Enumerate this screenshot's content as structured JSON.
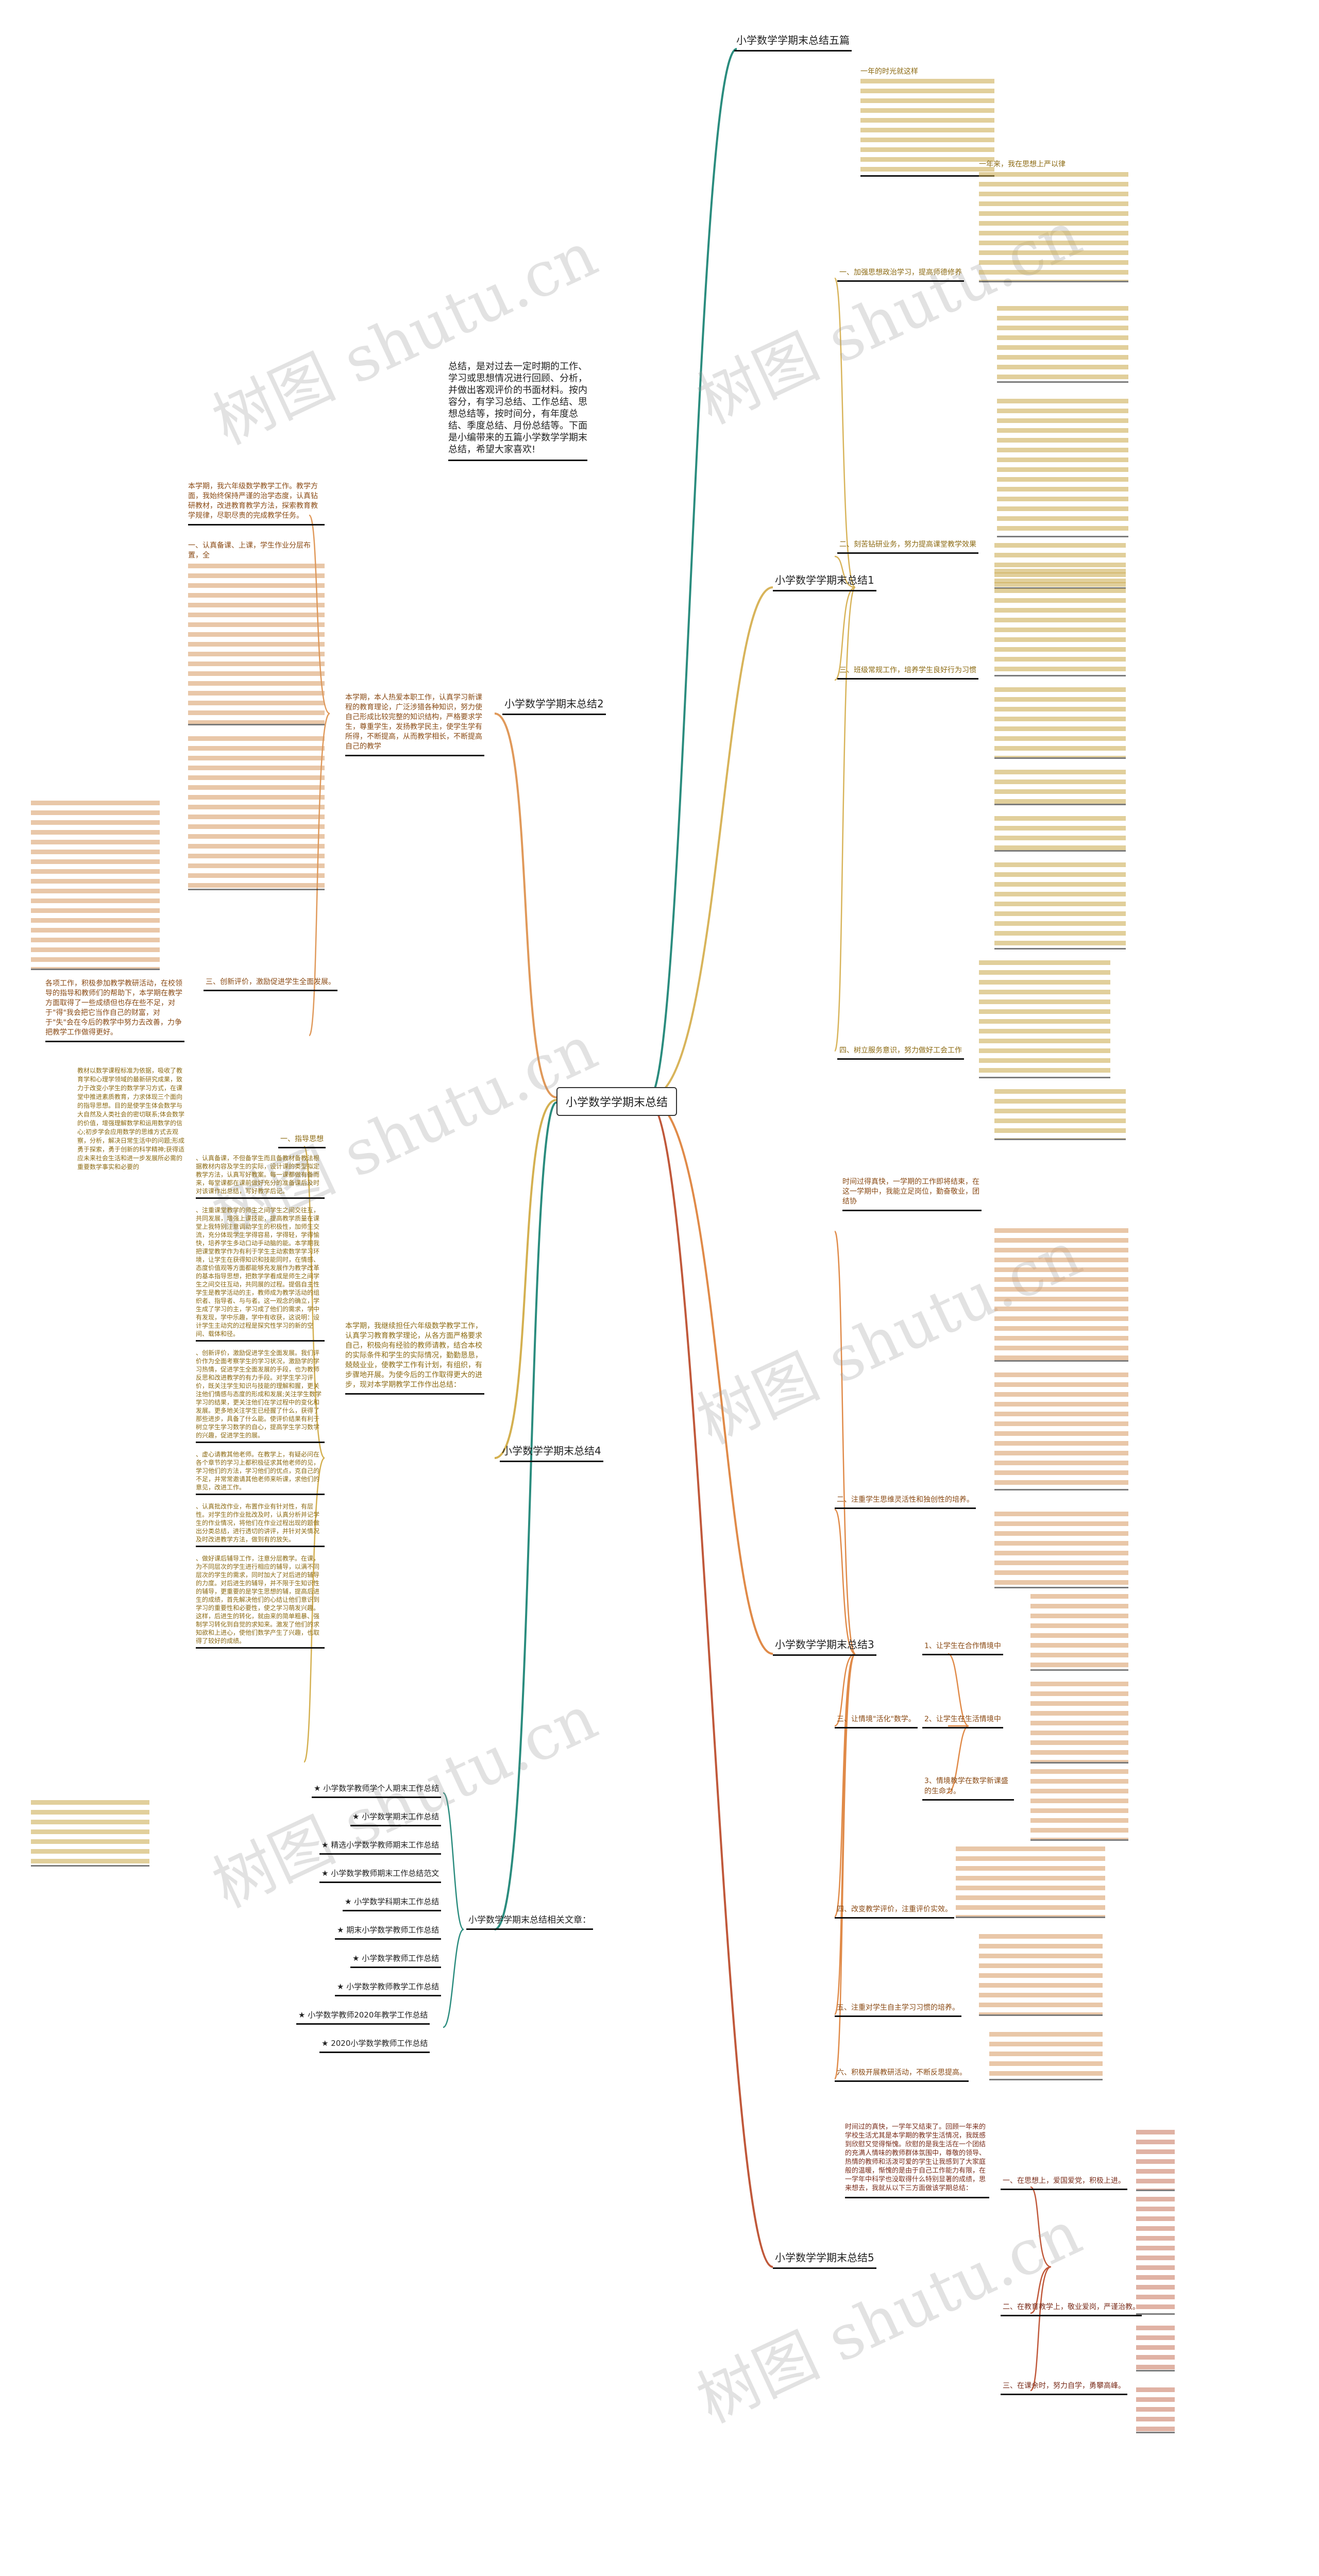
{
  "center": "小学数学学期末总结",
  "intro": "总结，是对过去一定时期的工作、学习或思想情况进行回顾、分析，并做出客观评价的书面材料。按内容分，有学习总结、工作总结、思想总结等，按时间分，有年度总结、季度总结、月份总结等。下面是小编带来的五篇小学数学学期末总结，希望大家喜欢!",
  "branches": {
    "five": {
      "label": "小学数学学期末总结五篇",
      "color": "#2a8c7e"
    },
    "b1": {
      "label": "小学数学学期末总结1",
      "color": "#d8b45a",
      "subs": [
        "一、加强思想政治学习，提高师德修养",
        "二、刻苦钻研业务，努力提高课堂教学效果",
        "三、班级常规工作，培养学生良好行为习惯",
        "四、树立服务意识，努力做好工会工作"
      ]
    },
    "b2": {
      "label": "小学数学学期末总结2",
      "color": "#e0995a",
      "intro": "本学期，本人热爱本职工作，认真学习新课程的教育理论，广泛涉猎各种知识，努力使自己形成比较完整的知识结构，严格要求学生，尊重学生，发扬教学民主，使学生学有所得，不断提高，从而教学相长，不断提高自己的教学",
      "p1": "本学期，我六年级数学教学工作。教学方面，我始终保持严谨的治学态度，认真钻研教材，改进教育教学方法，探索教育教学规律，尽职尽责的完成教学任务。",
      "s1": "一、认真备课、上课，学生作业分层布置，全",
      "s3": "三、创新评价，激励促进学生全面发展。",
      "p_end": "各项工作，积极参加教学教研活动，在校领导的指导和教师们的帮助下，本学期在教学方面取得了一些成绩但也存在些不足，对于\"得\"我会把它当作自己的财富，对于\"失\"会在今后的教学中努力去改善，力争把教学工作做得更好。"
    },
    "b3": {
      "label": "小学数学学期末总结3",
      "color": "#e08a48",
      "intro": "时间过得真快，一学期的工作即将结束，在这一学期中，我能立足岗位，勤奋敬业，团结协",
      "subs": [
        "二、注重学生思维灵活性和独创性的培养。",
        "三、让情境\"活化\"数学。",
        "四、改变教学评价，注重评价实效。",
        "五、注重对学生自主学习习惯的培养。",
        "六、积极开展教研活动，不断反思提高。"
      ],
      "sub3_items": [
        "1、让学生在合作情境中",
        "2、让学生在生活情境中",
        "3、情境教学在数学新课盛的生命力。"
      ]
    },
    "b4": {
      "label": "小学数学学期末总结4",
      "color": "#d4b050",
      "intro": "本学期，我继续担任六年级数学教学工作，认真学习教育教学理论，从各方面严格要求自己，积极向有经验的教师请教，结合本校的实际条件和学生的实际情况，勤勤恳恳，兢兢业业，使教学工作有计划，有组织，有步骤地开展。为使今后的工作取得更大的进步，现对本学期教学工作作出总结：",
      "guide_text": "教材以数学课程标准为依据，吸收了教育学和心理学领域的最新研究成果，致力于改变小学生的数学学习方式，在课堂中推进素质教育，力求体现三个面向的指导思想。目的是使学生体会数学与大自然及人类社会的密切联系;体会数学的价值，增强理解数学和运用数学的信心;初步学会应用数学的思维方式去观察，分析，解决日常生活中的问题;形成勇于探索，勇于创新的科学精神;获得适应未来社会生活和进一步发展所必需的重要数学事实和必要的",
      "guide": "一、指导思想",
      "items": [
        "、认真备课，不但备学生而且备教材备教法根据教材内容及学生的实际，设计课的类型拟定教学方法，认真写好教案。每一课都做有备而来，每堂课都在课前做好充分的准备课后及时对该课作出总结，写好教学后记。",
        "、注重课堂教学的师生之间学生之间交往互，共同发展，增强上课技能，提高教学质量在课堂上我特别注意调动学生的积极性，加师生交流，充分体现学生学得容易，学得轻，学得愉快，培养学生多动口动手动脑的能。本学期我把课堂教学作为有利于学生主动索数学学习环境，让学生在获得知识和技能同时，在情感、态度价值观等方面都能够充发展作为教学改革的基本指导思想，把数学学看成是师生之间学生之间交往互动，共同展的过程。提倡自主性学生是教学活动的主，教师成为教学活动的组织者、指导者、与与者。这一观念的确立，学生成了学习的主，学习成了他们的需求，学中有发现，学中乐趣，学中有收获，这说明：设计学生主动究的过程是探究性学习的新的空间、载体和径。",
        "、创新评价，激励促进学生全面发展。我们评价作为全面考察学生的学习状况，激励学的学习热情，促进学生全面发展的手段，也为教师反思和改进教学的有力手段。对学生学习评价，既关注学生知识与技能的理解和握，更关注他们情感与态度的形成和发展;关注学生数学学习的结果，更关注他们在学过程中的变化和发展。更多地关注学生已经握了什么，获得了那些进步，具备了什么能。使评价结果有利于树立学生学习数学的自心，提高学生学习数学的兴趣，促进学生的展。",
        "、虚心请教其他老师。在教学上，有疑必问在各个章节的学习上都积极征求其他老师的见，学习他们的方法，学习他们的优点，克自己的不足，并常常邀请其他老师来听课，求他们的意见，改进工作。",
        "、认真批改作业，布置作业有针对性，有层性。对学生的作业批改及时，认真分析并记学生的作业情况，将他们在作业过程出现的题做出分类总结，进行透切的讲评，并针对关情况及时改进教学方法，做到有的放矢。",
        "、做好课后辅导工作，注意分层教学。在课，为不同层次的学生进行相应的辅导，以满不同层次的学生的需求，同时加大了对后进的辅导的力度。对后进生的辅导，并不限于生知识性的辅导，更重要的是学生思想的辅，提高后进生的成绩，首先解决他们的心结让他们意识到学习的重要性和必要性，使之学习萌发兴趣。这样，后进生的转化，就由来的简单粗暴、强制学习转化到自觉的求知来。激发了他们的求知欲和上进心，使他们数学产生了兴趣，也取得了较好的成绩。"
      ]
    },
    "related": {
      "label": "小学数学学期末总结相关文章：",
      "color": "#2a8c7e",
      "items": [
        "★ 小学数学教师学个人期末工作总结",
        "★ 小学数学期末工作总结",
        "★ 精选小学数学教师期末工作总结",
        "★ 小学数学教师期末工作总结范文",
        "★ 小学数学科期末工作总结",
        "★ 期末小学数学教师工作总结",
        "★ 小学数学教师工作总结",
        "★ 小学数学教师教学工作总结",
        "★ 小学数学教师2020年教学工作总结",
        "★ 2020小学数学教师工作总结"
      ]
    },
    "b5": {
      "label": "小学数学学期末总结5",
      "color": "#c0583a",
      "intro": "时间过的真快，一学年又结束了。回顾一年来的学校生活尤其是本学期的教学生活情况，我既感到欣慰又觉得惭愧。欣慰的是我生活在一个团结的充满人情味的教师群体氛围中，尊敬的领导、热情的教师和活泼可爱的学生让我感到了大家庭般的温暖，惭愧的是由于自己工作能力有限，在一学年中科学也没取得什么特别显著的成绩，思来想去，我就从以下三方面做该学期总结：",
      "subs": [
        "一、在思想上，爱国爱党，积极上进。",
        "二、在教育教学上，敬业爱岗，严谨治教。",
        "三、在课余时，努力自学，勇攀高峰。"
      ]
    }
  },
  "five_intro_start": "一年的时光就这样",
  "b1_p1_start": "一年来，我在思想上严以律",
  "watermark": "树图 shutu.cn"
}
